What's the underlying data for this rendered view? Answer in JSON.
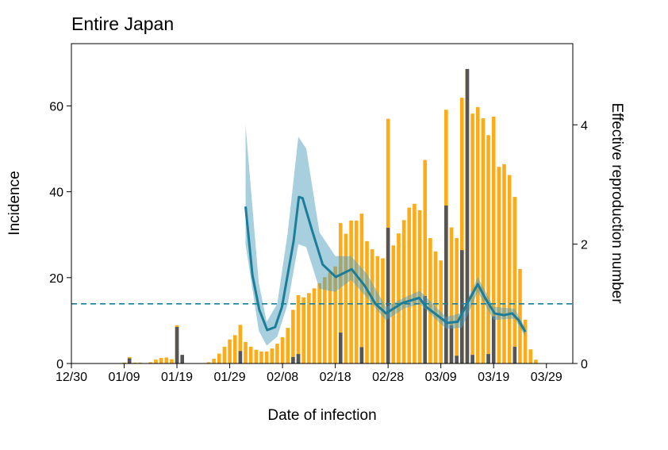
{
  "chart_data": {
    "type": "bar",
    "title": "Entire Japan",
    "xlabel": "Date of infection",
    "ylabel": "Incidence",
    "y2label": "Effective reproduction number",
    "x_ticks": [
      "12/30",
      "01/09",
      "01/19",
      "01/29",
      "02/08",
      "02/18",
      "02/28",
      "03/09",
      "03/19",
      "03/29"
    ],
    "x_tick_days": [
      0,
      10,
      20,
      30,
      40,
      50,
      60,
      70,
      80,
      90
    ],
    "xlim_days": [
      0,
      95
    ],
    "y_ticks": [
      0,
      20,
      40,
      60
    ],
    "ylim": [
      0,
      74.5
    ],
    "y2_ticks": [
      0,
      2,
      4
    ],
    "y2lim": [
      0,
      5.36
    ],
    "grid": false,
    "reference_line_R": 1,
    "colors": {
      "total": "#FFAB16",
      "dark": "#555555",
      "line": "#1B7D98",
      "band": "rgba(80,160,190,0.5)"
    },
    "series": [
      {
        "name": "incidence_total",
        "start_day": 0,
        "values": [
          0,
          0,
          0,
          0,
          0,
          0,
          0,
          0,
          0,
          0,
          0.2,
          1.5,
          0.2,
          0.2,
          0,
          0.3,
          0.9,
          1.3,
          1.4,
          1.0,
          8.9,
          2.0,
          0,
          0,
          0,
          0,
          0.3,
          1.1,
          2.3,
          3.9,
          5.6,
          6.6,
          9.0,
          5.0,
          3.9,
          3.2,
          2.8,
          2.8,
          3.5,
          4.6,
          6.1,
          8.3,
          12.5,
          15.9,
          15.4,
          16.4,
          17.5,
          18.7,
          20.1,
          21.2,
          22.6,
          32.7,
          30.2,
          33.3,
          33.3,
          34.9,
          28.5,
          26.6,
          25.0,
          24.5,
          57.0,
          27.5,
          30.3,
          33.4,
          36.3,
          37.2,
          35.7,
          47.4,
          29.2,
          26.1,
          24.0,
          59.1,
          31.7,
          29.2,
          61.9,
          68.6,
          58.2,
          59.7,
          57.1,
          53.2,
          57.5,
          45.8,
          46.4,
          43.9,
          38.8,
          22.0,
          10.2,
          3.3,
          0.9
        ]
      },
      {
        "name": "incidence_dark",
        "start_day": 0,
        "values": [
          0,
          0,
          0,
          0,
          0,
          0,
          0,
          0,
          0,
          0,
          0,
          1.2,
          0,
          0,
          0,
          0,
          0,
          0,
          0,
          0,
          8.5,
          2.0,
          0,
          0,
          0,
          0,
          0,
          0,
          0,
          0,
          0,
          0,
          2.9,
          0,
          0,
          0,
          0,
          0,
          0,
          0,
          0,
          0,
          1.5,
          2.2,
          0,
          0,
          0,
          0,
          0,
          0,
          0,
          7.2,
          0,
          0,
          0,
          3.8,
          0,
          0,
          0,
          0,
          31.6,
          0,
          0,
          0,
          0,
          0,
          0,
          15.7,
          0,
          0,
          0,
          36.8,
          8.9,
          1.8,
          26.4,
          68.6,
          2.0,
          0,
          0,
          2.2,
          11.0,
          0,
          0,
          0,
          3.9,
          0,
          0,
          0,
          0
        ]
      },
      {
        "name": "R_mean",
        "days": [
          33,
          34.3,
          35.6,
          37.1,
          38.6,
          39.9,
          41,
          42.1,
          43.1,
          43.8,
          45.6,
          47.6,
          50.1,
          53.1,
          55.6,
          57.6,
          59.6,
          62.6,
          65.9,
          67.2,
          71.2,
          73.2,
          75.2,
          77,
          78.5,
          80.2,
          82,
          83.5,
          84.7,
          86
        ],
        "values": [
          2.63,
          1.48,
          0.9,
          0.56,
          0.61,
          0.95,
          1.5,
          2.05,
          2.79,
          2.77,
          2.23,
          1.66,
          1.45,
          1.58,
          1.3,
          1.0,
          0.84,
          1.01,
          1.1,
          0.95,
          0.68,
          0.7,
          1.04,
          1.33,
          1.08,
          0.84,
          0.81,
          0.84,
          0.73,
          0.53
        ]
      },
      {
        "name": "R_ci",
        "days": [
          33,
          35.5,
          37,
          39,
          41,
          43,
          44.5,
          47,
          50,
          53,
          56,
          59.6,
          63,
          66,
          71,
          74,
          77,
          80,
          84,
          86
        ],
        "upper": [
          4.0,
          1.35,
          0.7,
          1.0,
          2.2,
          3.8,
          3.6,
          2.2,
          1.8,
          1.8,
          1.5,
          0.95,
          1.1,
          1.22,
          0.78,
          0.85,
          1.45,
          0.95,
          0.92,
          0.6
        ],
        "lower": [
          2.0,
          0.55,
          0.3,
          0.45,
          1.0,
          2.0,
          1.95,
          1.25,
          1.2,
          1.4,
          1.1,
          0.72,
          0.92,
          1.0,
          0.58,
          0.6,
          1.2,
          0.73,
          0.75,
          0.45
        ]
      }
    ]
  }
}
